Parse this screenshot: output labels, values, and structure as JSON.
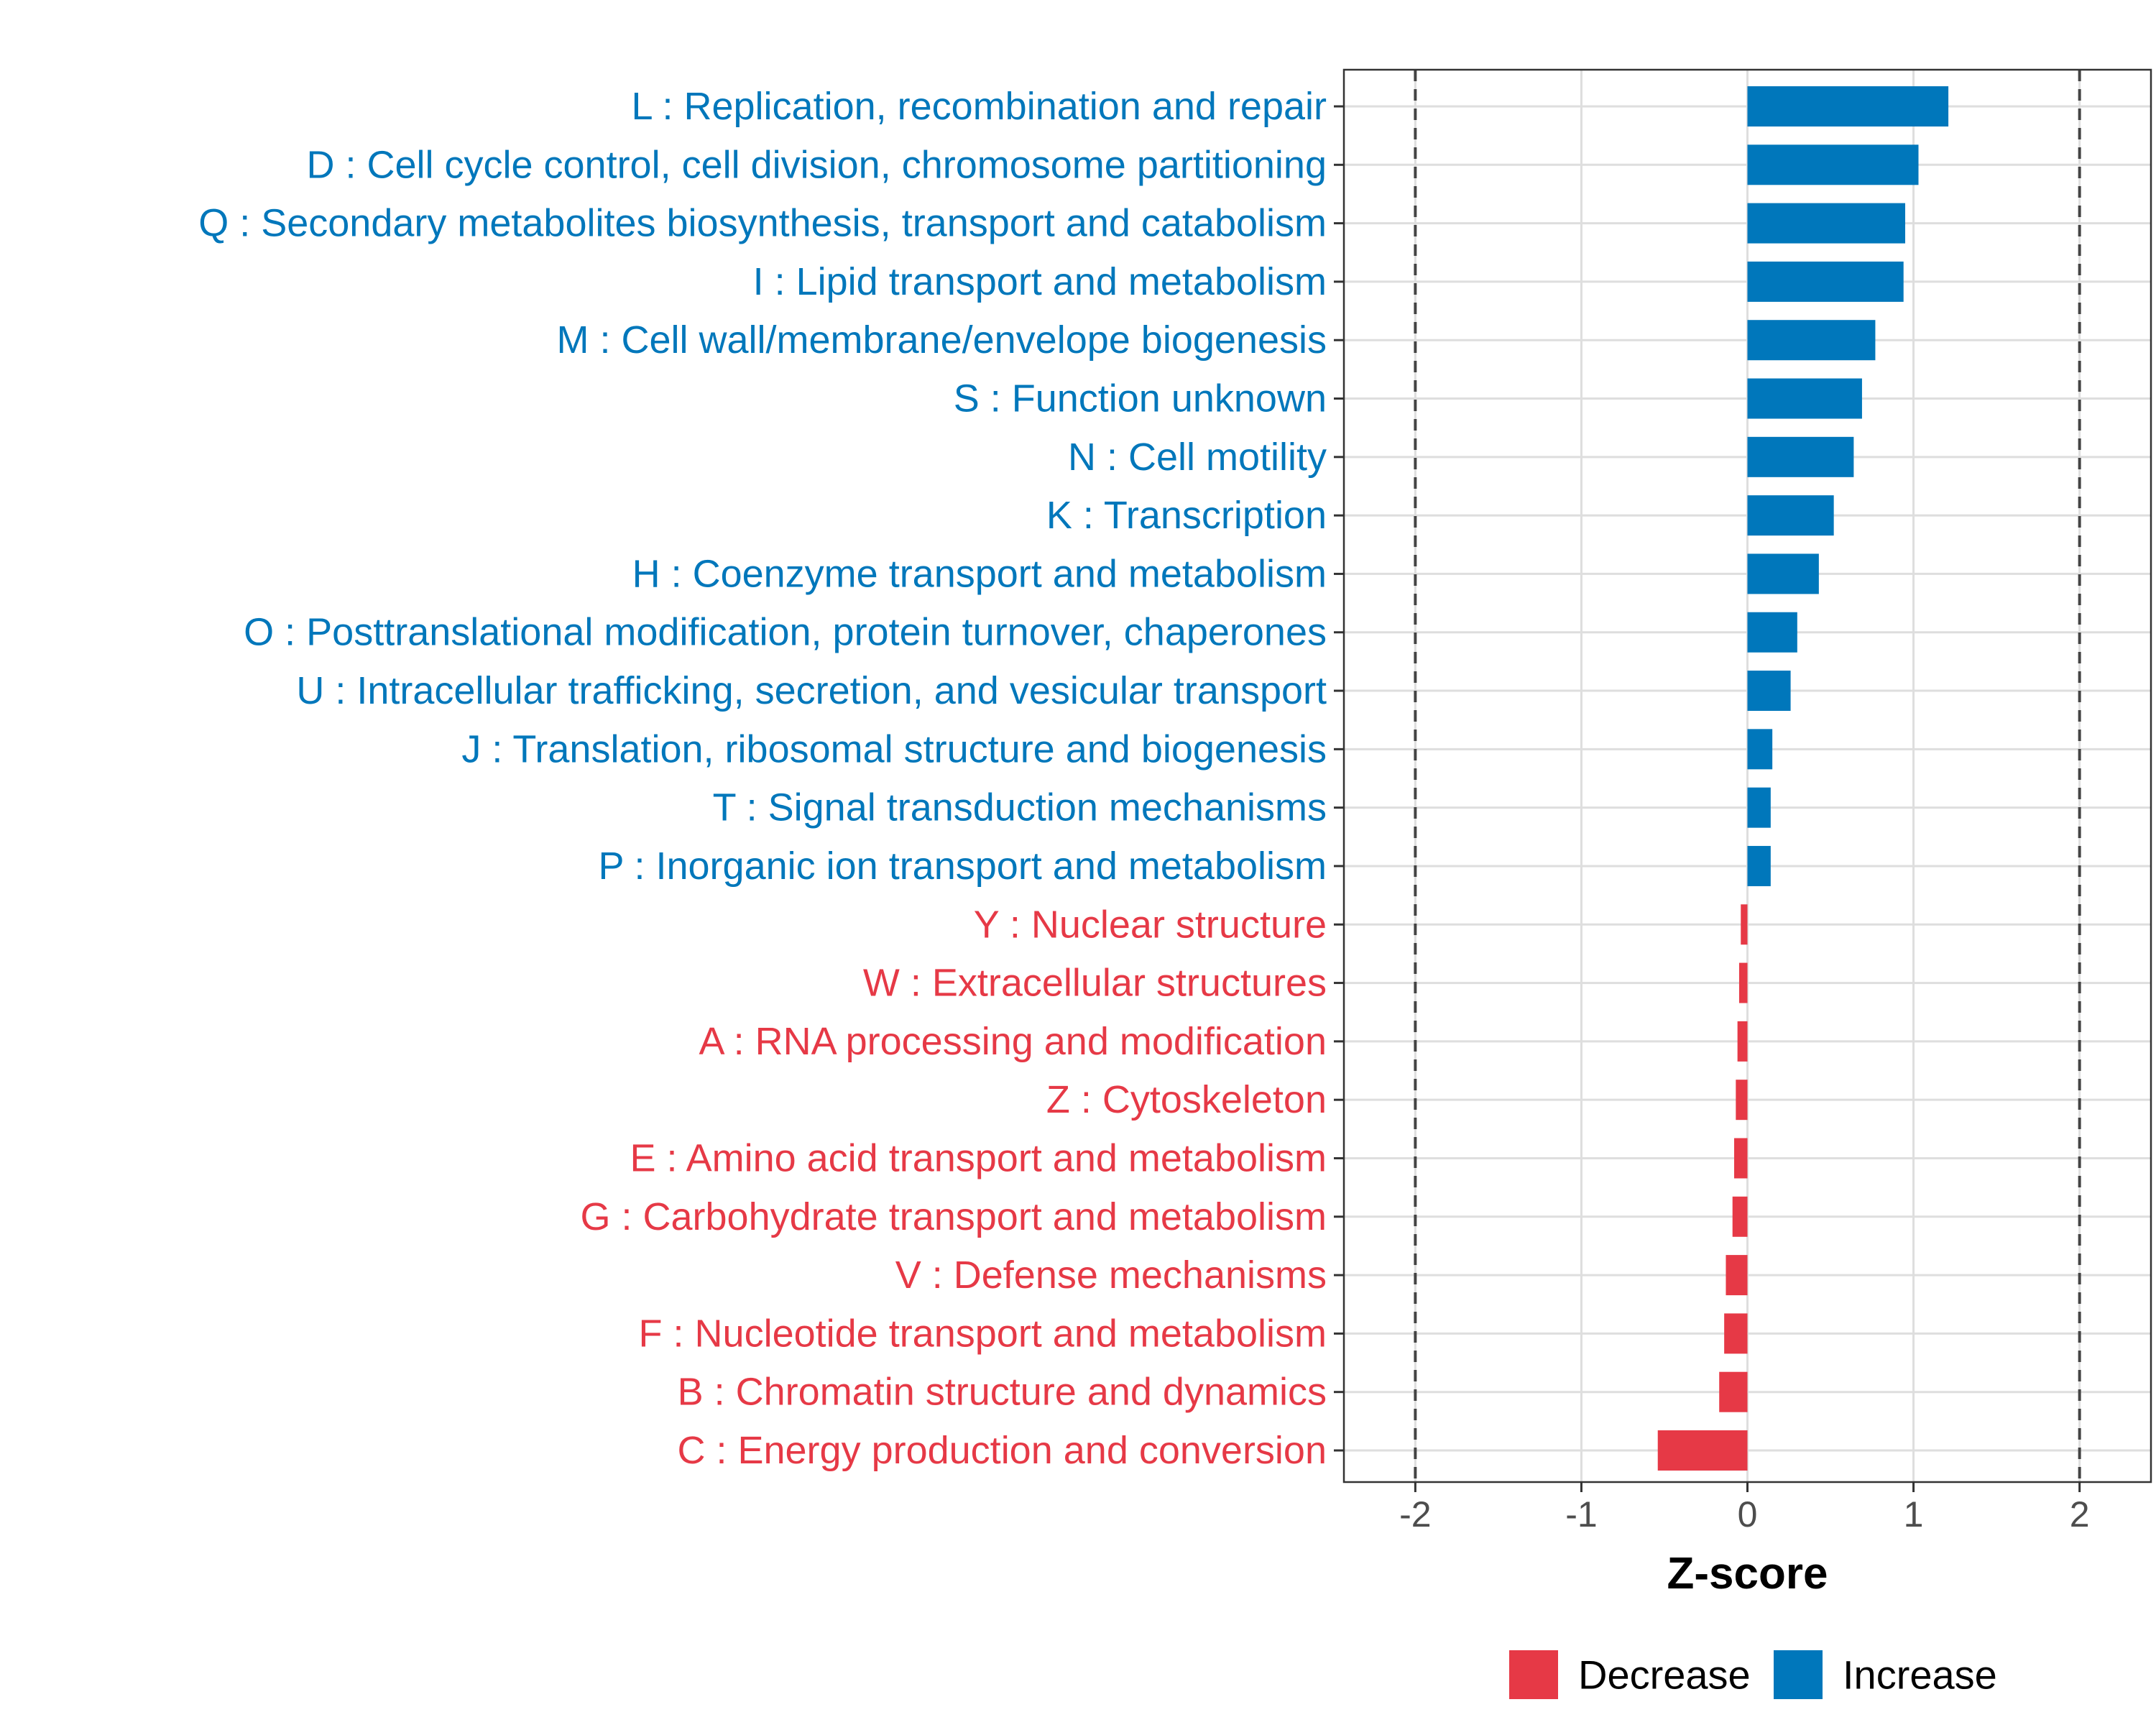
{
  "chart_data": {
    "type": "bar",
    "orientation": "horizontal",
    "title": "",
    "xlabel": "Z-score",
    "ylabel": "",
    "xlim": [
      -2.43,
      2.43
    ],
    "xticks": [
      -2,
      -1,
      0,
      1,
      2
    ],
    "tick_labels": [
      "-2",
      "-1",
      "0",
      "1",
      "2"
    ],
    "reference_lines": [
      -2,
      2
    ],
    "grid": true,
    "categories": [
      "L : Replication, recombination and repair",
      "D : Cell cycle control, cell division, chromosome partitioning",
      "Q : Secondary metabolites biosynthesis, transport and catabolism",
      "I : Lipid transport and metabolism",
      "M : Cell wall/membrane/envelope biogenesis",
      "S : Function unknown",
      "N : Cell motility",
      "K : Transcription",
      "H : Coenzyme transport and metabolism",
      "O : Posttranslational modification, protein turnover, chaperones",
      "U : Intracellular trafficking, secretion, and vesicular transport",
      "J : Translation, ribosomal structure and biogenesis",
      "T : Signal transduction mechanisms",
      "P : Inorganic ion transport and metabolism",
      "Y : Nuclear structure",
      "W : Extracellular structures",
      "A : RNA processing and modification",
      "Z : Cytoskeleton",
      "E : Amino acid transport and metabolism",
      "G : Carbohydrate transport and metabolism",
      "V : Defense mechanisms",
      "F : Nucleotide transport and metabolism",
      "B : Chromatin structure and dynamics",
      "C : Energy production and conversion"
    ],
    "values": [
      1.21,
      1.03,
      0.95,
      0.94,
      0.77,
      0.69,
      0.64,
      0.52,
      0.43,
      0.3,
      0.26,
      0.15,
      0.14,
      0.14,
      -0.04,
      -0.05,
      -0.06,
      -0.07,
      -0.08,
      -0.09,
      -0.13,
      -0.14,
      -0.17,
      -0.54
    ],
    "groups": [
      "Increase",
      "Increase",
      "Increase",
      "Increase",
      "Increase",
      "Increase",
      "Increase",
      "Increase",
      "Increase",
      "Increase",
      "Increase",
      "Increase",
      "Increase",
      "Increase",
      "Decrease",
      "Decrease",
      "Decrease",
      "Decrease",
      "Decrease",
      "Decrease",
      "Decrease",
      "Decrease",
      "Decrease",
      "Decrease"
    ],
    "legend": {
      "position": "bottom",
      "entries": [
        {
          "label": "Decrease",
          "color": "#e63946"
        },
        {
          "label": "Increase",
          "color": "#0077bb"
        }
      ]
    },
    "colors": {
      "Increase": "#0077bb",
      "Decrease": "#e63946"
    }
  }
}
